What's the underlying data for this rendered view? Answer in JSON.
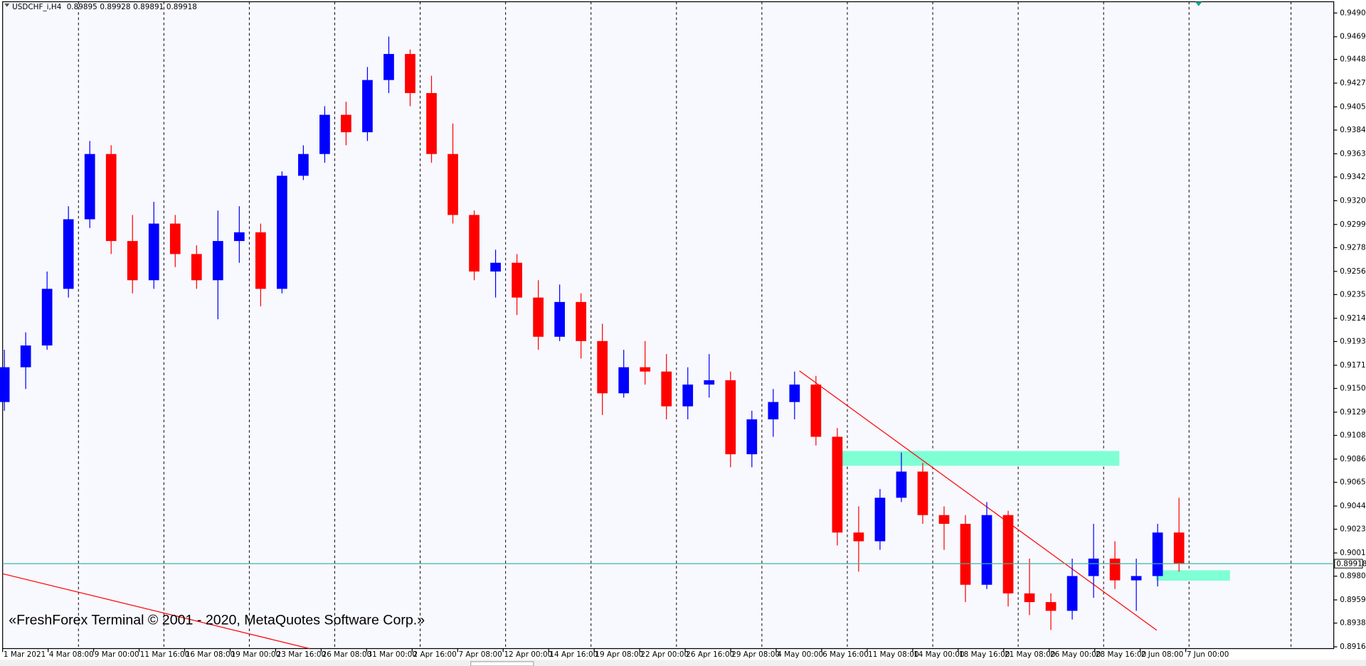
{
  "chart_data": {
    "type": "candlestick",
    "title": "USDCHF_i,H4",
    "quote": [
      0.89895,
      0.89928,
      0.89891,
      0.89918
    ],
    "colors": {
      "up": "#0000ff",
      "down": "#ff0000",
      "price_line": "#3cb8a0"
    },
    "ylim": [
      0.89149,
      0.95007
    ],
    "yticks": [
      0.94905,
      {
        "value": 0.9469,
        "label": "0.94690"
      },
      0.94485,
      {
        "value": 0.9427,
        "label": "0.94270"
      },
      0.94055,
      0.93845,
      {
        "value": 0.9363,
        "label": "0.93630"
      },
      {
        "value": 0.9342,
        "label": "0.93420"
      },
      0.93205,
      {
        "value": 0.9299,
        "label": "0.92990"
      },
      {
        "value": 0.9278,
        "label": "0.92780"
      },
      0.92565,
      0.92355,
      {
        "value": 0.9214,
        "label": "0.92140"
      },
      {
        "value": 0.9193,
        "label": "0.91930"
      },
      0.91715,
      0.91505,
      {
        "value": 0.9129,
        "label": "0.91290"
      },
      {
        "value": 0.9108,
        "label": "0.91080"
      },
      0.90865,
      0.90655,
      {
        "value": 0.9044,
        "label": "0.90440"
      },
      {
        "value": 0.9023,
        "label": "0.90230"
      },
      0.90015,
      0.89805,
      {
        "value": 0.8959,
        "label": "0.89590"
      },
      {
        "value": 0.8938,
        "label": "0.89380"
      },
      0.89165
    ],
    "xlabels": [
      "1 Mar 2021",
      "4 Mar 08:00",
      "9 Mar 00:00",
      "11 Mar 16:00",
      "16 Mar 08:00",
      "19 Mar 00:00",
      "23 Mar 16:00",
      "26 Mar 08:00",
      "31 Mar 00:00",
      "2 Apr 16:00",
      "7 Apr 08:00",
      "12 Apr 00:00",
      "14 Apr 16:00",
      "19 Apr 08:00",
      "22 Apr 00:00",
      "26 Apr 16:00",
      "29 Apr 08:00",
      "4 May 00:00",
      "6 May 16:00",
      "11 May 08:00",
      "14 May 00:00",
      "18 May 16:00",
      "21 May 08:00",
      "26 May 00:00",
      "28 May 16:00",
      "2 Jun 08:00",
      "7 Jun 00:00"
    ],
    "candles": [
      [
        0.91382,
        0.91855,
        0.91303,
        0.91697
      ],
      [
        0.91697,
        0.92013,
        0.915,
        0.91894
      ],
      [
        0.91894,
        0.92564,
        0.91855,
        0.92407
      ],
      [
        0.92407,
        0.93155,
        0.92328,
        0.93037
      ],
      [
        0.93037,
        0.93746,
        0.92958,
        0.93628
      ],
      [
        0.93628,
        0.93707,
        0.92722,
        0.9284
      ],
      [
        0.9284,
        0.93076,
        0.92367,
        0.92485
      ],
      [
        0.92485,
        0.93195,
        0.92407,
        0.92998
      ],
      [
        0.92998,
        0.93076,
        0.92604,
        0.92722
      ],
      [
        0.92722,
        0.92801,
        0.92407,
        0.92485
      ],
      [
        0.92485,
        0.93116,
        0.92131,
        0.9284
      ],
      [
        0.9284,
        0.93155,
        0.92643,
        0.92919
      ],
      [
        0.92919,
        0.92998,
        0.92249,
        0.92407
      ],
      [
        0.92407,
        0.9347,
        0.92367,
        0.93431
      ],
      [
        0.93431,
        0.93707,
        0.93392,
        0.93628
      ],
      [
        0.93628,
        0.94061,
        0.93549,
        0.93983
      ],
      [
        0.93983,
        0.94101,
        0.93707,
        0.93825
      ],
      [
        0.93825,
        0.94416,
        0.93746,
        0.94298
      ],
      [
        0.94298,
        0.94692,
        0.9418,
        0.94534
      ],
      [
        0.94534,
        0.94574,
        0.94061,
        0.9418
      ],
      [
        0.9418,
        0.94337,
        0.93549,
        0.93628
      ],
      [
        0.93628,
        0.93904,
        0.92998,
        0.93076
      ],
      [
        0.93076,
        0.93116,
        0.92485,
        0.92564
      ],
      [
        0.92564,
        0.92761,
        0.92328,
        0.92643
      ],
      [
        0.92643,
        0.92722,
        0.9217,
        0.92328
      ],
      [
        0.92328,
        0.92485,
        0.91855,
        0.91973
      ],
      [
        0.91973,
        0.92446,
        0.91934,
        0.92288
      ],
      [
        0.92288,
        0.92367,
        0.91776,
        0.91934
      ],
      [
        0.91934,
        0.92091,
        0.91264,
        0.91461
      ],
      [
        0.91461,
        0.91855,
        0.91422,
        0.91697
      ],
      [
        0.91697,
        0.91934,
        0.9154,
        0.91658
      ],
      [
        0.91658,
        0.91816,
        0.91225,
        0.91343
      ],
      [
        0.91343,
        0.91697,
        0.91225,
        0.9154
      ],
      [
        0.9154,
        0.91816,
        0.91422,
        0.91579
      ],
      [
        0.91579,
        0.91658,
        0.90791,
        0.90909
      ],
      [
        0.90909,
        0.91303,
        0.90791,
        0.91225
      ],
      [
        0.91225,
        0.915,
        0.91067,
        0.91382
      ],
      [
        0.91382,
        0.91658,
        0.91225,
        0.9154
      ],
      [
        0.9154,
        0.91619,
        0.90988,
        0.91067
      ],
      [
        0.91067,
        0.91146,
        0.90082,
        0.902
      ],
      [
        0.902,
        0.90437,
        0.89846,
        0.90121
      ],
      [
        0.90121,
        0.90594,
        0.90043,
        0.90515
      ],
      [
        0.90515,
        0.90925,
        0.90476,
        0.90752
      ],
      [
        0.90752,
        0.90831,
        0.90279,
        0.90358
      ],
      [
        0.90358,
        0.90437,
        0.90043,
        0.90279
      ],
      [
        0.90279,
        0.90358,
        0.8957,
        0.89727
      ],
      [
        0.89727,
        0.90476,
        0.89688,
        0.90358
      ],
      [
        0.90358,
        0.90397,
        0.8953,
        0.89649
      ],
      [
        0.89649,
        0.89964,
        0.89452,
        0.8957
      ],
      [
        0.8957,
        0.89649,
        0.89318,
        0.89491
      ],
      [
        0.89491,
        0.89964,
        0.89412,
        0.89806
      ],
      [
        0.89806,
        0.90279,
        0.89609,
        0.89964
      ],
      [
        0.89964,
        0.90121,
        0.89688,
        0.89767
      ],
      [
        0.89767,
        0.89964,
        0.89491,
        0.89806
      ],
      [
        0.89806,
        0.90279,
        0.89712,
        0.902
      ],
      [
        0.902,
        0.90515,
        0.89846,
        0.89918
      ]
    ],
    "watermark": "«FreshForex Terminal © 2001 - 2020, MetaQuotes Software Corp.»"
  }
}
